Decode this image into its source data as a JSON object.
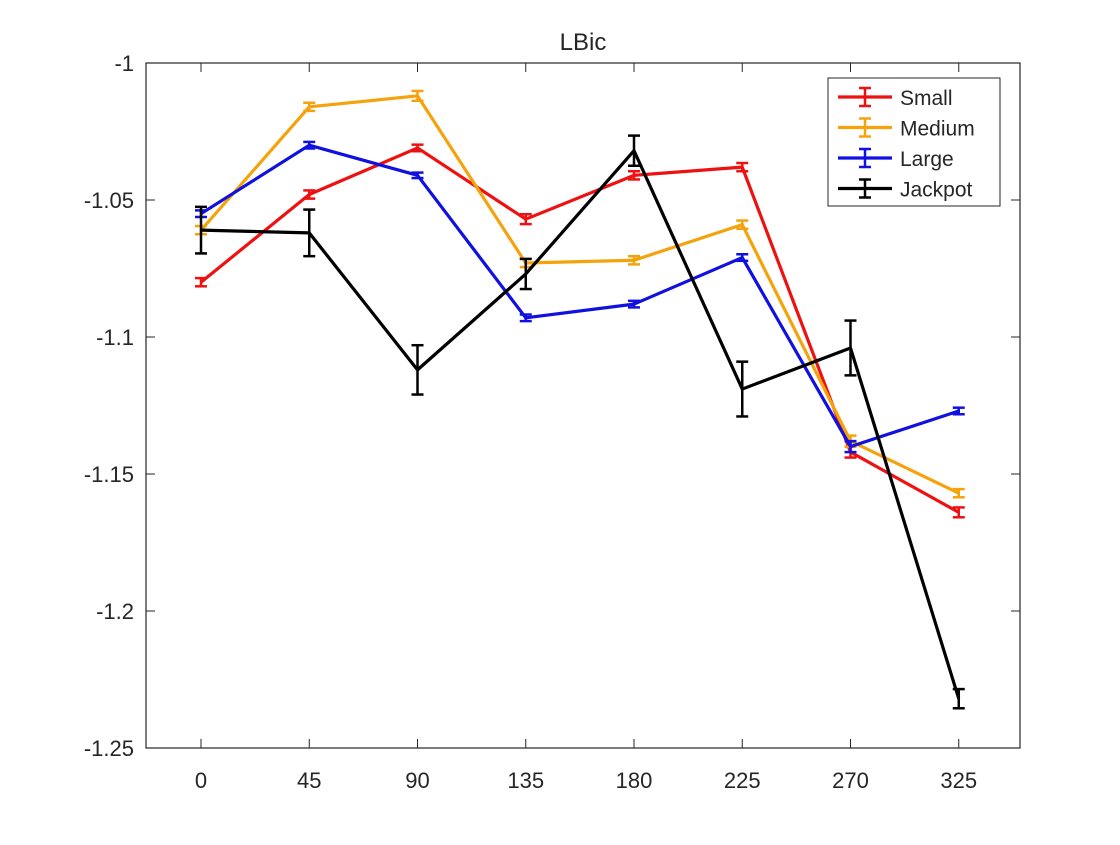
{
  "chart_data": {
    "type": "line",
    "title": "LBic",
    "xlabel": "",
    "ylabel": "",
    "categories": [
      "0",
      "45",
      "90",
      "135",
      "180",
      "225",
      "270",
      "325"
    ],
    "ylim": [
      -1.25,
      -1.0
    ],
    "yticks": [
      "-1",
      "-1.05",
      "-1.1",
      "-1.15",
      "-1.2",
      "-1.25"
    ],
    "ytick_values": [
      -1.0,
      -1.05,
      -1.1,
      -1.15,
      -1.2,
      -1.25
    ],
    "grid": false,
    "legend_position": "top-right",
    "error_bars": true,
    "series": [
      {
        "name": "Small",
        "color": "#ee1111",
        "values": [
          -1.08,
          -1.048,
          -1.031,
          -1.057,
          -1.041,
          -1.038,
          -1.142,
          -1.164
        ],
        "errors": [
          0.0015,
          0.0015,
          0.0012,
          0.0018,
          0.0015,
          0.0015,
          0.002,
          0.0018
        ]
      },
      {
        "name": "Medium",
        "color": "#f4a30c",
        "values": [
          -1.061,
          -1.016,
          -1.012,
          -1.073,
          -1.072,
          -1.059,
          -1.138,
          -1.157
        ],
        "errors": [
          0.0015,
          0.0015,
          0.0018,
          0.0015,
          0.0015,
          0.0015,
          0.002,
          0.0015
        ]
      },
      {
        "name": "Large",
        "color": "#1010e0",
        "values": [
          -1.055,
          -1.03,
          -1.041,
          -1.093,
          -1.088,
          -1.071,
          -1.14,
          -1.127
        ],
        "errors": [
          0.0012,
          0.0012,
          0.001,
          0.0012,
          0.0012,
          0.0012,
          0.002,
          0.0012
        ]
      },
      {
        "name": "Jackpot",
        "color": "#000000",
        "values": [
          -1.061,
          -1.062,
          -1.112,
          -1.077,
          -1.032,
          -1.119,
          -1.104,
          -1.232
        ],
        "errors": [
          0.0085,
          0.0085,
          0.009,
          0.0055,
          0.0055,
          0.01,
          0.01,
          0.0035
        ]
      }
    ]
  }
}
